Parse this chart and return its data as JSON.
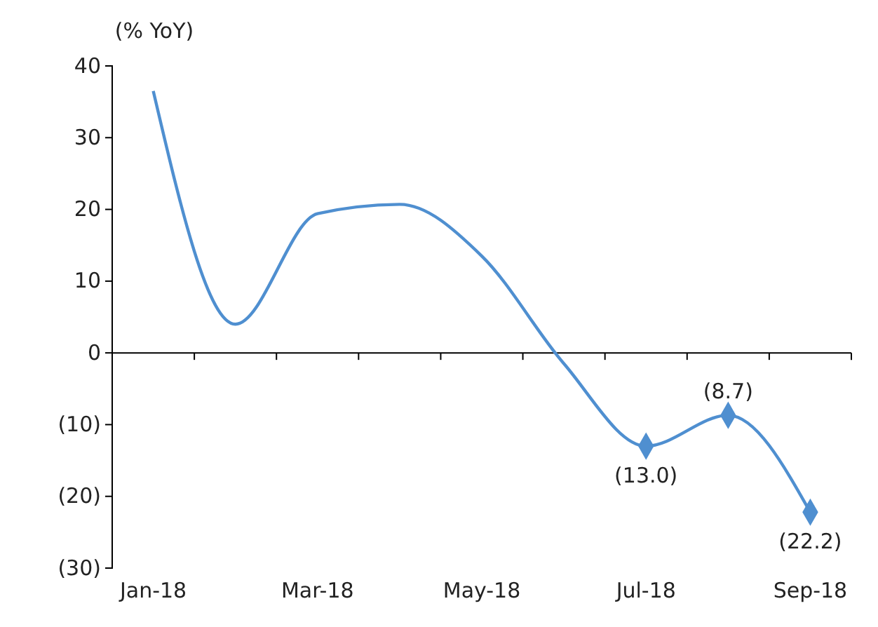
{
  "chart_data": {
    "type": "line",
    "ylabel": "(% YoY)",
    "categories": [
      "Jan-18",
      null,
      "Mar-18",
      null,
      "May-18",
      null,
      "Jul-18",
      null,
      "Sep-18"
    ],
    "series": [
      {
        "color": "#4f8fd0",
        "values": [
          36.5,
          4,
          19.4,
          20.7,
          13.5,
          -1.5,
          -13.0,
          -8.7,
          -22.2
        ]
      },
      {
        "type": "scatter",
        "marker": "diamond",
        "color": "#4f8fd0",
        "values": [
          null,
          null,
          null,
          null,
          null,
          null,
          -13.0,
          -8.7,
          -22.2
        ],
        "value_labels": [
          null,
          null,
          null,
          null,
          null,
          null,
          "(13.0)",
          "(8.7)",
          "(22.2)"
        ]
      }
    ],
    "ylim": [
      -30,
      40
    ],
    "yticks": [
      {
        "value": -30,
        "label": "(30)"
      },
      {
        "value": -20,
        "label": "(20)"
      },
      {
        "value": -10,
        "label": "(10)"
      },
      0,
      10,
      20,
      30,
      40
    ],
    "marker": "none",
    "line_style": "solid"
  }
}
